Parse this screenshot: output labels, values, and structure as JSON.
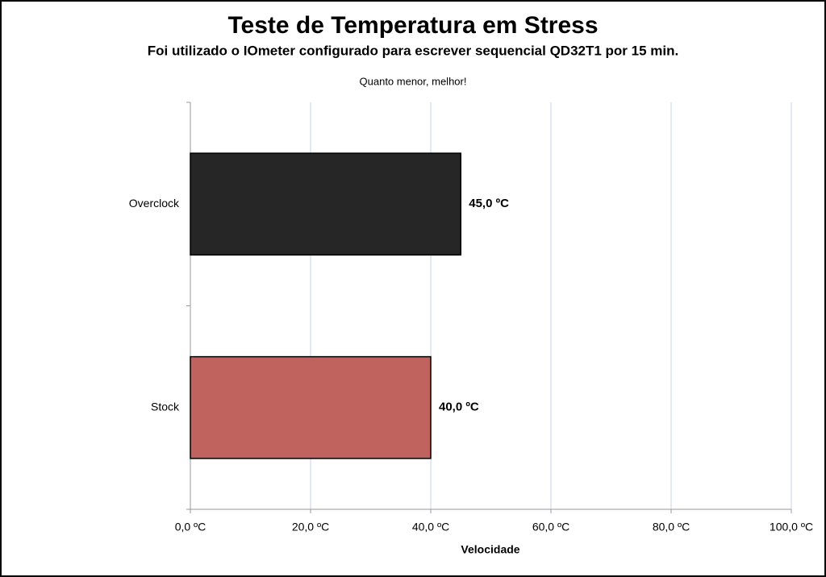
{
  "chart_data": {
    "type": "bar",
    "orientation": "horizontal",
    "title": "Teste de Temperatura em Stress",
    "subtitle": "Foi utilizado o IOmeter  configurado para escrever sequencial QD32T1 por 15 min.",
    "annotation": "Quanto menor, melhor!",
    "x_label": "Velocidade",
    "categories": [
      "Overclock",
      "Stock"
    ],
    "values": [
      45,
      40
    ],
    "value_labels": [
      "45,0 ºC",
      "40,0 ºC"
    ],
    "colors": [
      "#262626",
      "#c0625e"
    ],
    "xlim": [
      0,
      100
    ],
    "xticks": [
      {
        "value": 0,
        "label": "0,0 ºC"
      },
      {
        "value": 20,
        "label": "20,0 ºC"
      },
      {
        "value": 40,
        "label": "40,0 ºC"
      },
      {
        "value": 60,
        "label": "60,0 ºC"
      },
      {
        "value": 80,
        "label": "80,0 ºC"
      },
      {
        "value": 100,
        "label": "100,0 ºC"
      }
    ],
    "grid": true
  }
}
